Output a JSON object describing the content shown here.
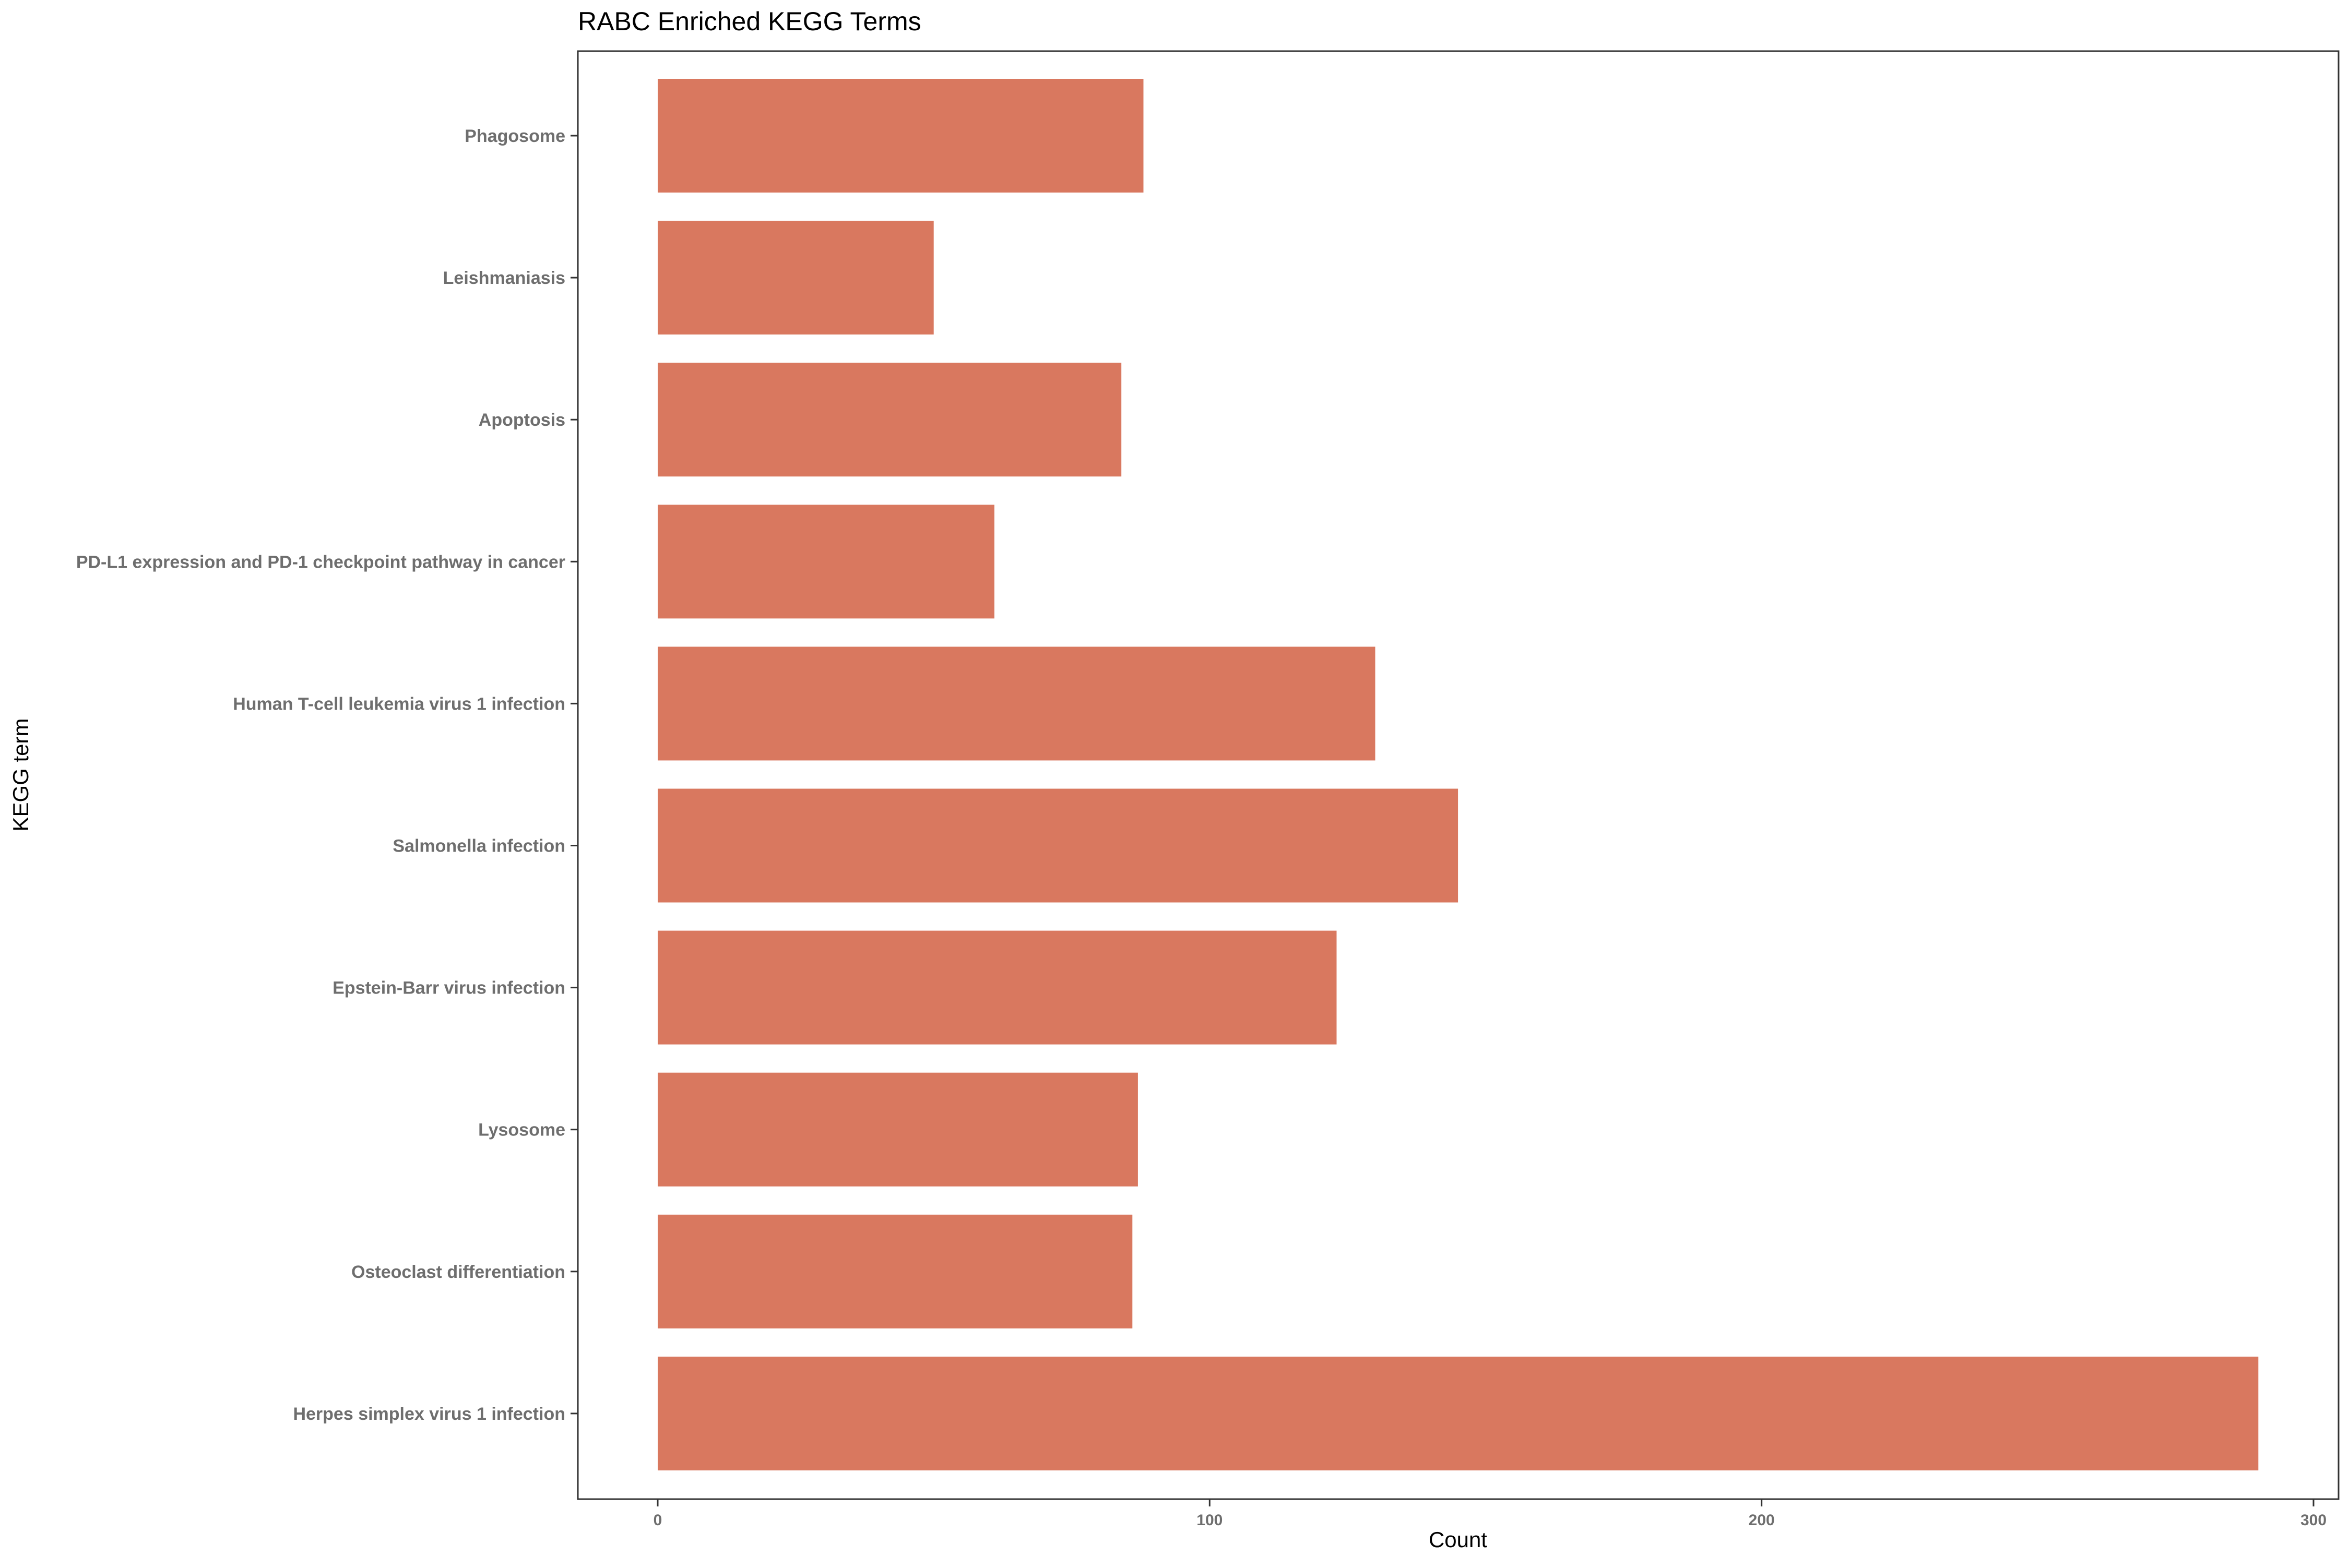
{
  "chart_data": {
    "type": "bar",
    "orientation": "horizontal",
    "title": "RABC Enriched KEGG Terms",
    "xlabel": "Count",
    "ylabel": "KEGG term",
    "categories": [
      "Phagosome",
      "Leishmaniasis",
      "Apoptosis",
      "PD-L1 expression and PD-1 checkpoint pathway in cancer",
      "Human T-cell leukemia virus 1 infection",
      "Salmonella infection",
      "Epstein-Barr virus infection",
      "Lysosome",
      "Osteoclast differentiation",
      "Herpes simplex virus 1 infection"
    ],
    "values": [
      88,
      50,
      84,
      61,
      130,
      145,
      123,
      87,
      86,
      290
    ],
    "xlim": [
      0,
      300
    ],
    "xticks": [
      0,
      100,
      200,
      300
    ],
    "grid": false,
    "legend": "none",
    "bar_color": "#D9785F",
    "axis_color": "#333333",
    "tick_label_color": "#6E6E6E"
  }
}
